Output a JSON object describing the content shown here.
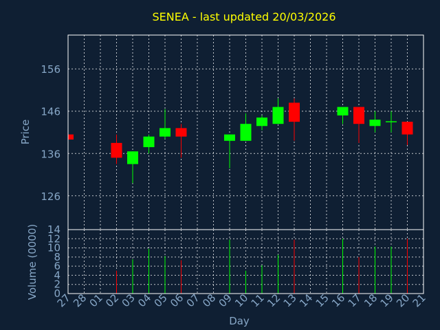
{
  "chart_data": {
    "type": "candlestick",
    "title": "SENEA - last updated 20/03/2026",
    "xlabel": "Day",
    "ylabel": "Price",
    "volume_label": "Volume (0000)",
    "x_tick_labels": [
      "27",
      "28",
      "01",
      "02",
      "03",
      "04",
      "05",
      "06",
      "07",
      "08",
      "09",
      "10",
      "11",
      "12",
      "13",
      "14",
      "15",
      "16",
      "17",
      "18",
      "19",
      "20",
      "21"
    ],
    "price_axis": {
      "ylim": [
        118,
        164
      ],
      "ticks": [
        126,
        136,
        146,
        156
      ]
    },
    "volume_axis": {
      "ylim": [
        0,
        14
      ],
      "ticks": [
        0,
        2,
        4,
        6,
        8,
        10,
        12,
        14
      ]
    },
    "grid": true,
    "colors": {
      "up": "#00ff00",
      "down": "#ff0000",
      "title": "#ffff00",
      "background": "#0f1f33",
      "text": "#87a7c7"
    },
    "candles": [
      {
        "day": "27",
        "open": 140.5,
        "high": 140.5,
        "low": 139.3,
        "close": 139.3,
        "volume": 0
      },
      {
        "day": "02",
        "open": 138.5,
        "high": 140.5,
        "low": 133.5,
        "close": 135.0,
        "volume": 5
      },
      {
        "day": "03",
        "open": 133.5,
        "high": 136.5,
        "low": 129.0,
        "close": 136.5,
        "volume": 7.5
      },
      {
        "day": "04",
        "open": 137.5,
        "high": 140.5,
        "low": 136.0,
        "close": 140.0,
        "volume": 9.8
      },
      {
        "day": "05",
        "open": 140.0,
        "high": 146.5,
        "low": 139.5,
        "close": 142.0,
        "volume": 8.2
      },
      {
        "day": "06",
        "open": 142.0,
        "high": 143.0,
        "low": 135.0,
        "close": 140.0,
        "volume": 7.3
      },
      {
        "day": "09",
        "open": 139.0,
        "high": 140.5,
        "low": 132.5,
        "close": 140.5,
        "volume": 11.8
      },
      {
        "day": "10",
        "open": 139.0,
        "high": 145.5,
        "low": 139.0,
        "close": 143.0,
        "volume": 5
      },
      {
        "day": "11",
        "open": 142.5,
        "high": 145.0,
        "low": 141.5,
        "close": 144.5,
        "volume": 6.2
      },
      {
        "day": "12",
        "open": 143.0,
        "high": 149.0,
        "low": 143.0,
        "close": 147.0,
        "volume": 8.5
      },
      {
        "day": "13",
        "open": 148.0,
        "high": 149.0,
        "low": 139.0,
        "close": 143.5,
        "volume": 11.8
      },
      {
        "day": "16",
        "open": 145.0,
        "high": 147.0,
        "low": 143.0,
        "close": 147.0,
        "volume": 12
      },
      {
        "day": "17",
        "open": 147.0,
        "high": 147.0,
        "low": 138.5,
        "close": 143.0,
        "volume": 8
      },
      {
        "day": "18",
        "open": 142.5,
        "high": 146.0,
        "low": 141.0,
        "close": 144.0,
        "volume": 10.3
      },
      {
        "day": "19",
        "open": 143.5,
        "high": 146.0,
        "low": 141.0,
        "close": 143.5,
        "volume": 10.3
      },
      {
        "day": "20",
        "open": 143.5,
        "high": 143.5,
        "low": 138.0,
        "close": 140.5,
        "volume": 12
      }
    ]
  }
}
